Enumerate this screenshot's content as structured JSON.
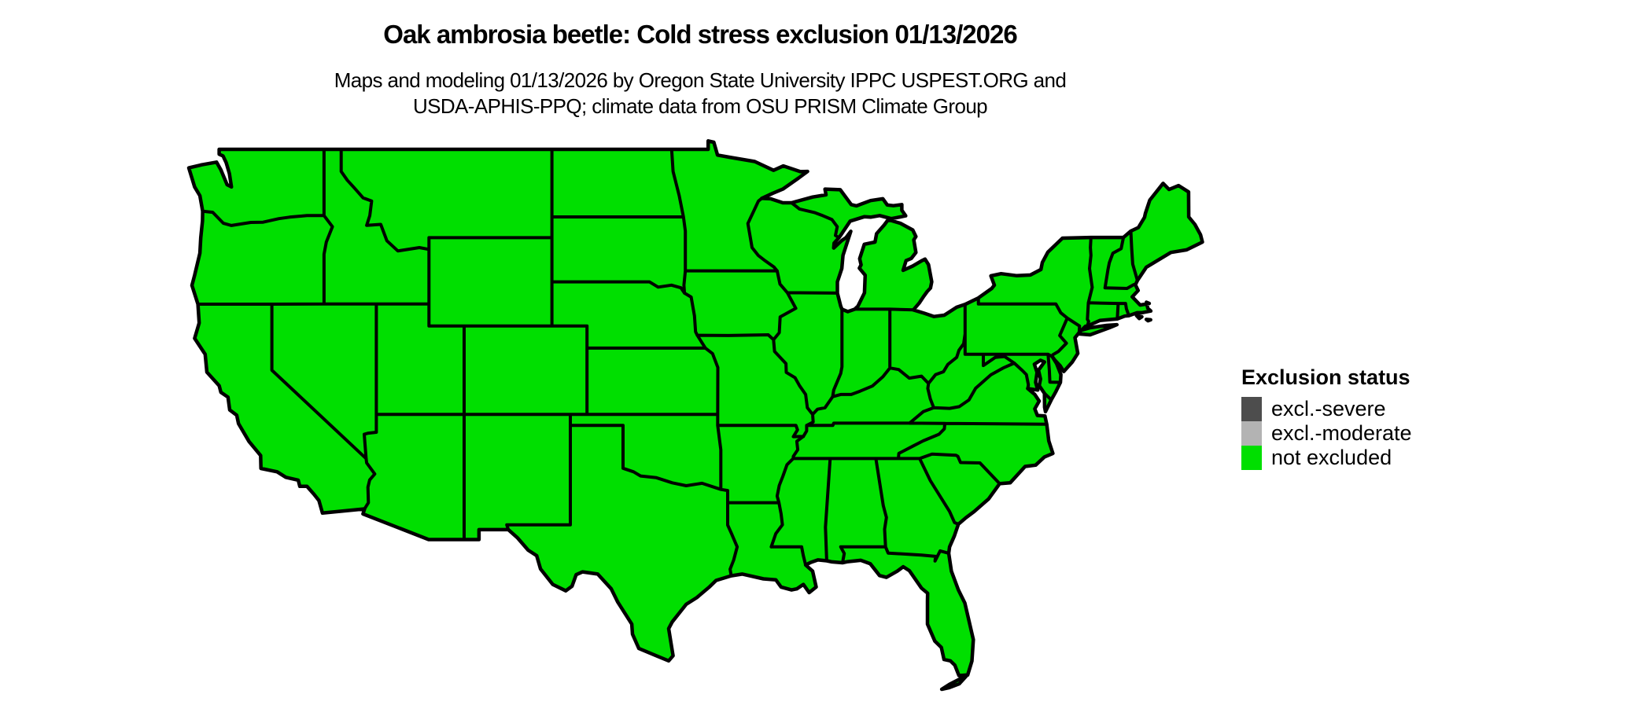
{
  "header": {
    "title": "Oak ambrosia beetle: Cold stress exclusion 01/13/2026",
    "subtitle_line1": "Maps and modeling 01/13/2026 by Oregon State University IPPC USPEST.ORG and",
    "subtitle_line2": "USDA-APHIS-PPQ; climate data from OSU PRISM Climate Group"
  },
  "legend": {
    "title": "Exclusion status",
    "items": [
      {
        "label": "excl.-severe",
        "color": "#4D4D4D"
      },
      {
        "label": "excl.-moderate",
        "color": "#B3B3B3"
      },
      {
        "label": "not excluded",
        "color": "#00DF00"
      }
    ]
  },
  "map": {
    "region": "Contiguous United States",
    "status_shown_everywhere": "not excluded",
    "border_color": "#000000",
    "background_color": "#FFFFFF"
  }
}
